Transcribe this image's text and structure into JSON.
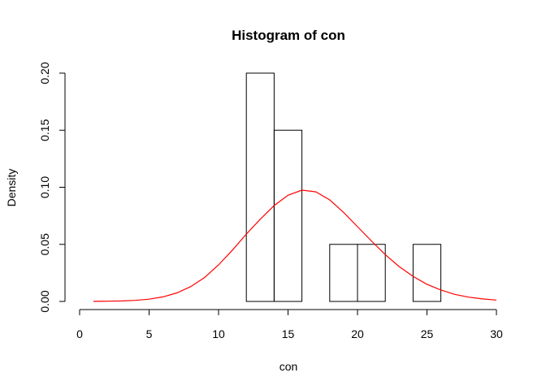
{
  "chart_data": {
    "type": "bar",
    "title": "Histogram of con",
    "xlabel": "con",
    "ylabel": "Density",
    "xlim": [
      0,
      30
    ],
    "ylim": [
      0,
      0.2
    ],
    "x_ticks": [
      0,
      5,
      10,
      15,
      20,
      25,
      30
    ],
    "x_tick_labels": [
      "0",
      "5",
      "10",
      "15",
      "20",
      "25",
      "30"
    ],
    "y_ticks": [
      0,
      0.05,
      0.1,
      0.15,
      0.2
    ],
    "y_tick_labels": [
      "0.00",
      "0.05",
      "0.10",
      "0.15",
      "0.20"
    ],
    "grid": false,
    "bins": [
      {
        "start": 12,
        "end": 14,
        "density": 0.2
      },
      {
        "start": 14,
        "end": 16,
        "density": 0.15
      },
      {
        "start": 16,
        "end": 18,
        "density": 0.0
      },
      {
        "start": 18,
        "end": 20,
        "density": 0.05
      },
      {
        "start": 20,
        "end": 22,
        "density": 0.05
      },
      {
        "start": 22,
        "end": 24,
        "density": 0.0
      },
      {
        "start": 24,
        "end": 26,
        "density": 0.05
      }
    ],
    "curve": {
      "type": "line",
      "color": "#ff0000",
      "x": [
        1,
        2,
        3,
        4,
        5,
        6,
        7,
        8,
        9,
        10,
        11,
        12,
        13,
        14,
        15,
        16,
        17,
        18,
        19,
        20,
        21,
        22,
        23,
        24,
        25,
        26,
        27,
        28,
        29,
        30
      ],
      "y": [
        0.0001,
        0.0002,
        0.0004,
        0.0009,
        0.002,
        0.004,
        0.0075,
        0.013,
        0.021,
        0.032,
        0.045,
        0.059,
        0.072,
        0.084,
        0.093,
        0.0975,
        0.096,
        0.089,
        0.078,
        0.0655,
        0.053,
        0.041,
        0.0305,
        0.022,
        0.015,
        0.01,
        0.0062,
        0.0038,
        0.0022,
        0.0012
      ]
    },
    "colors": {
      "bars_stroke": "#000000",
      "curve": "#ff0000"
    }
  }
}
